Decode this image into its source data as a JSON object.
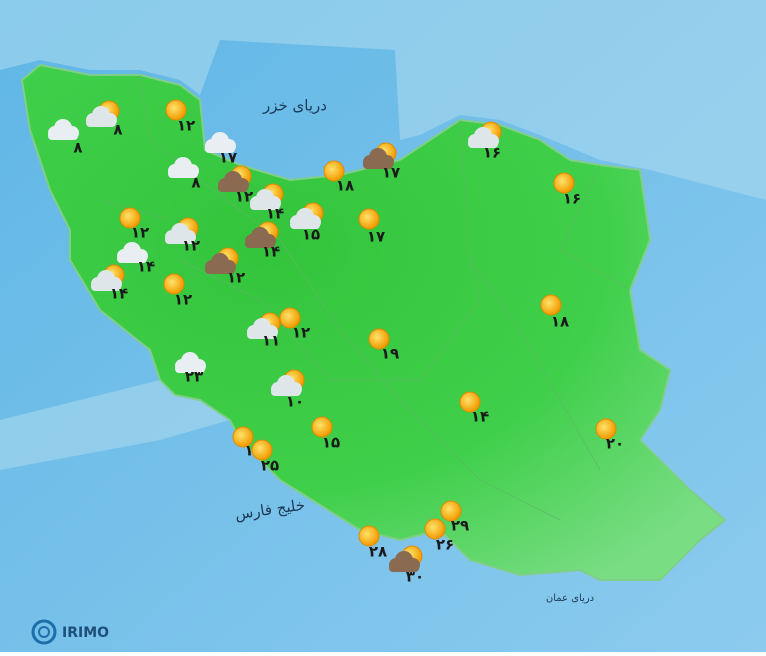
{
  "seas": {
    "caspian": "دریای خزر",
    "persian_gulf": "خلیج فارس",
    "oman": "دریای عمان"
  },
  "logo": "IRIMO",
  "stations": [
    {
      "temp": "۸"
    },
    {
      "temp": "۸"
    },
    {
      "temp": "۱۲"
    },
    {
      "temp": "۱۷"
    },
    {
      "temp": "۸"
    },
    {
      "temp": "۱۲"
    },
    {
      "temp": "۱۴"
    },
    {
      "temp": "۱۵"
    },
    {
      "temp": "۱۴"
    },
    {
      "temp": "۱۲"
    },
    {
      "temp": "۱۲"
    },
    {
      "temp": "۱۲"
    },
    {
      "temp": "۱۴"
    },
    {
      "temp": "۱۴"
    },
    {
      "temp": "۱۲"
    },
    {
      "temp": "۱۱"
    },
    {
      "temp": "۱۲"
    },
    {
      "temp": "۲۳"
    },
    {
      "temp": "۱۰"
    },
    {
      "temp": "۱۹"
    },
    {
      "temp": "۱۸"
    },
    {
      "temp": "۱۷"
    },
    {
      "temp": "۱۷"
    },
    {
      "temp": "۱۶"
    },
    {
      "temp": "۱۶"
    },
    {
      "temp": "۱۸"
    },
    {
      "temp": "۱۴"
    },
    {
      "temp": "۱۵"
    },
    {
      "temp": "۲۰"
    },
    {
      "temp": "۱"
    },
    {
      "temp": "۲۵"
    },
    {
      "temp": "۲۹"
    },
    {
      "temp": "۲۶"
    },
    {
      "temp": "۲۸"
    },
    {
      "temp": "۳۰"
    }
  ]
}
